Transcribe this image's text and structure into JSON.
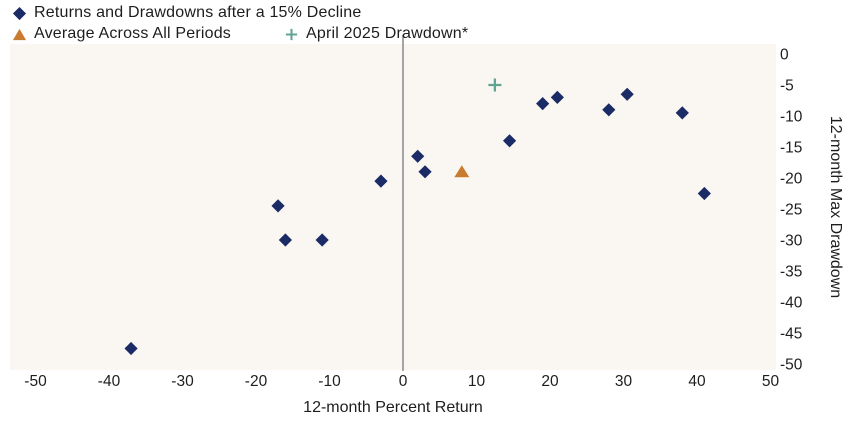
{
  "colors": {
    "navy": "#1b2b66",
    "orange": "#c97c2d",
    "teal": "#62a493",
    "plot_bg": "#faf6f2",
    "zero_line": "#909090",
    "text": "#1e1e1e"
  },
  "chart_data": {
    "type": "scatter",
    "xlabel": "12-month Percent Return",
    "ylabel": "12-month Max Drawdown",
    "xlim": [
      -50,
      50
    ],
    "ylim": [
      -50,
      0
    ],
    "x_ticks": [
      -50,
      -40,
      -30,
      -20,
      -10,
      0,
      10,
      20,
      30,
      40,
      50
    ],
    "y_ticks": [
      0,
      -5,
      -10,
      -15,
      -20,
      -25,
      -30,
      -35,
      -40,
      -45,
      -50
    ],
    "grid": false,
    "zero_line_x": 0,
    "legend_position": "top-left",
    "series": [
      {
        "name": "Returns and Drawdowns after a 15% Decline",
        "marker": "diamond",
        "color_key": "navy",
        "points": [
          [
            -37,
            -47.5
          ],
          [
            -17,
            -24.5
          ],
          [
            -16,
            -30
          ],
          [
            -11,
            -30
          ],
          [
            -3,
            -20.5
          ],
          [
            2,
            -16.5
          ],
          [
            3,
            -19
          ],
          [
            14.5,
            -14
          ],
          [
            19,
            -8
          ],
          [
            21,
            -7
          ],
          [
            28,
            -9
          ],
          [
            30.5,
            -6.5
          ],
          [
            38,
            -9.5
          ],
          [
            41,
            -22.5
          ]
        ]
      },
      {
        "name": "Average Across All Periods",
        "marker": "triangle",
        "color_key": "orange",
        "points": [
          [
            8,
            -19
          ]
        ]
      },
      {
        "name": "April 2025 Drawdown*",
        "marker": "plus",
        "color_key": "teal",
        "points": [
          [
            12.5,
            -5
          ]
        ]
      }
    ]
  }
}
